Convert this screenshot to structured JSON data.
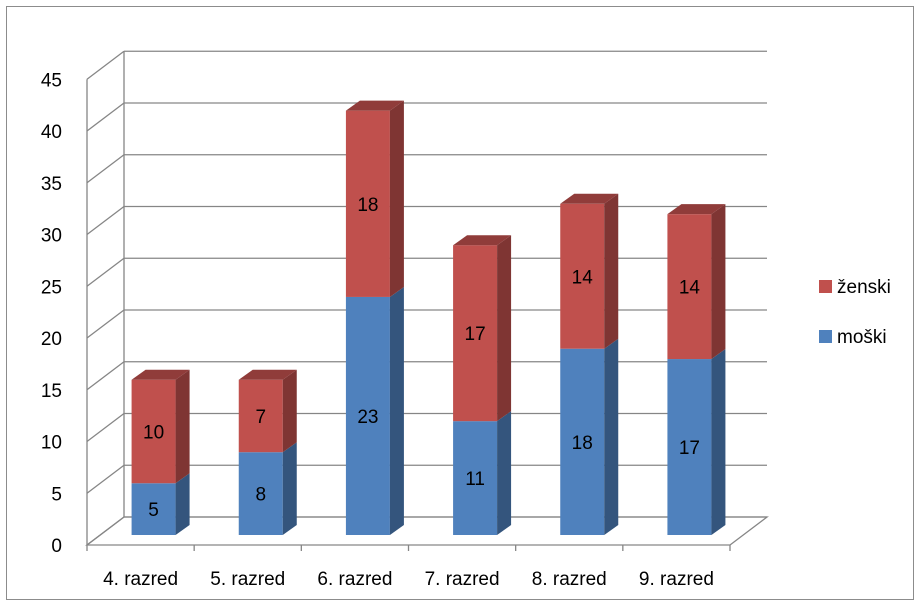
{
  "chart_data": {
    "type": "bar",
    "stacked": true,
    "three_d": true,
    "categories": [
      "4. razred",
      "5. razred",
      "6. razred",
      "7. razred",
      "8. razred",
      "9. razred"
    ],
    "series": [
      {
        "name": "moški",
        "values": [
          5,
          8,
          23,
          11,
          18,
          17
        ],
        "color": "#4f81bd"
      },
      {
        "name": "ženski",
        "values": [
          10,
          7,
          18,
          17,
          14,
          14
        ],
        "color": "#c0504d"
      }
    ],
    "ylim": [
      0,
      45
    ],
    "yticks": [
      0,
      5,
      10,
      15,
      20,
      25,
      30,
      35,
      40,
      45
    ],
    "grid": true,
    "legend_position": "right",
    "data_labels": true
  }
}
